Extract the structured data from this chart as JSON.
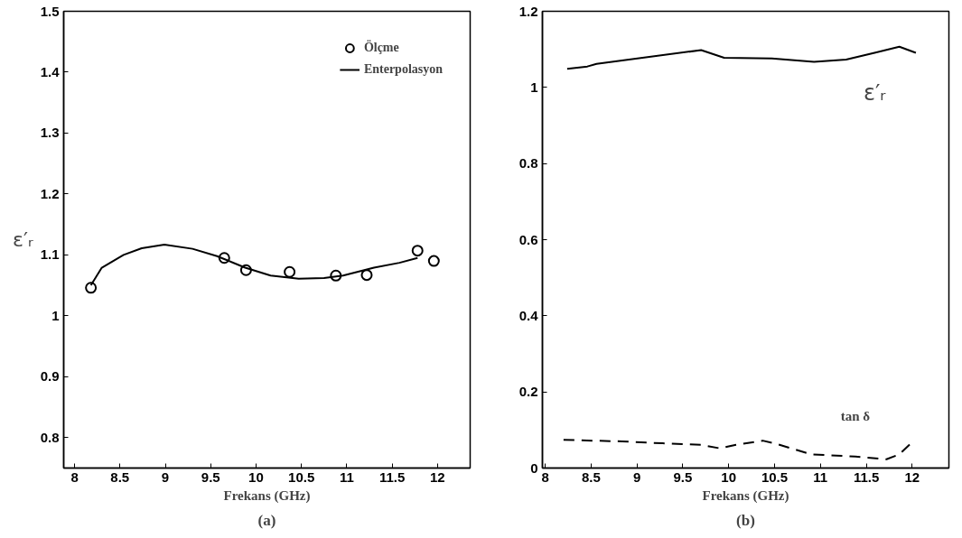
{
  "chart_data": [
    {
      "type": "line",
      "xlabel": "Frekans (GHz)",
      "ylabel": "ε′ᵣ",
      "xlim": [
        7.88,
        12.36
      ],
      "ylim": [
        0.75,
        1.5
      ],
      "xticks": [
        8,
        8.5,
        9,
        9.5,
        10,
        10.5,
        11,
        11.5,
        12
      ],
      "yticks": [
        0.8,
        0.9,
        1,
        1.1,
        1.2,
        1.3,
        1.4,
        1.5
      ],
      "grid": false,
      "legend": "top right",
      "series": [
        {
          "name": "Ölçme",
          "type": "scatter",
          "marker": "circle",
          "color": "#000000",
          "x": [
            8.18,
            9.65,
            9.89,
            10.37,
            10.88,
            11.22,
            11.78,
            11.96
          ],
          "values": [
            1.046,
            1.095,
            1.075,
            1.072,
            1.066,
            1.067,
            1.107,
            1.09
          ]
        },
        {
          "name": "Enterpolasyon",
          "line_style": "solid",
          "color": "#000000",
          "x": [
            8.18,
            8.3,
            8.54,
            8.74,
            8.99,
            9.3,
            9.57,
            9.88,
            10.16,
            10.47,
            10.75,
            10.96,
            11.3,
            11.58,
            11.78
          ],
          "values": [
            1.05,
            1.079,
            1.1,
            1.111,
            1.117,
            1.11,
            1.098,
            1.079,
            1.066,
            1.061,
            1.062,
            1.066,
            1.079,
            1.087,
            1.095
          ]
        }
      ],
      "annotations": [
        "(a)"
      ]
    },
    {
      "type": "line",
      "xlabel": "Frekans (GHz)",
      "xlim": [
        7.97,
        12.4
      ],
      "ylim": [
        0,
        1.2
      ],
      "xticks": [
        8,
        8.5,
        9,
        9.5,
        10,
        10.5,
        11,
        11.5,
        12
      ],
      "yticks": [
        0,
        0.2,
        0.4,
        0.6,
        0.8,
        1,
        1.2
      ],
      "grid": false,
      "series": [
        {
          "name": "ε′ᵣ",
          "line_style": "solid",
          "color": "#000000",
          "x": [
            8.24,
            8.46,
            8.56,
            9.7,
            9.95,
            10.47,
            10.93,
            11.28,
            11.59,
            11.86,
            12.04
          ],
          "values": [
            1.049,
            1.055,
            1.062,
            1.098,
            1.078,
            1.076,
            1.067,
            1.073,
            1.091,
            1.107,
            1.091
          ]
        },
        {
          "name": "tan δ",
          "line_style": "dashed",
          "color": "#000000",
          "x": [
            8.2,
            8.84,
            9.28,
            9.7,
            9.9,
            10.08,
            10.37,
            10.5,
            10.9,
            11.07,
            11.38,
            11.72,
            11.86,
            12.0
          ],
          "values": [
            0.074,
            0.07,
            0.065,
            0.061,
            0.052,
            0.061,
            0.072,
            0.065,
            0.036,
            0.034,
            0.03,
            0.023,
            0.036,
            0.068
          ]
        }
      ],
      "annotations": [
        "(b)"
      ]
    }
  ]
}
